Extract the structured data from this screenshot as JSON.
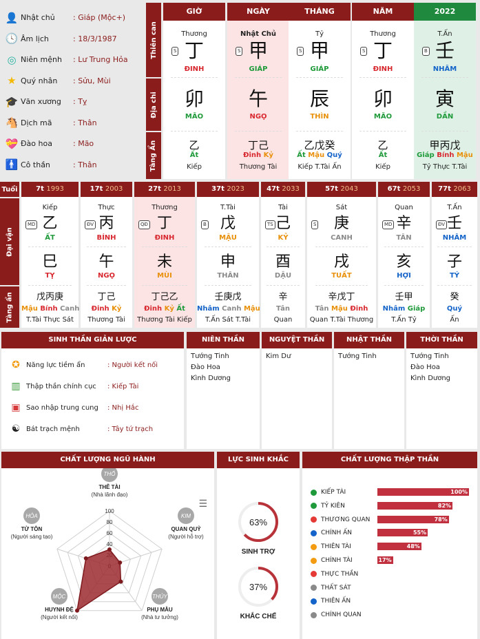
{
  "info": [
    {
      "icon": "user-icon",
      "label": "Nhật chủ",
      "value": ": Giáp (Mộc+)"
    },
    {
      "icon": "clock-icon",
      "label": "Âm lịch",
      "value": ": 18/3/1987"
    },
    {
      "icon": "ring-icon",
      "label": "Niên mệnh",
      "value": ": Lư Trung Hỏa"
    },
    {
      "icon": "star-icon",
      "label": "Quý nhân",
      "value": ": Sửu, Mùi"
    },
    {
      "icon": "graduation-cap-icon",
      "label": "Văn xương",
      "value": ": Tỵ"
    },
    {
      "icon": "horse-icon",
      "label": "Dịch mã",
      "value": ": Thân"
    },
    {
      "icon": "heart-flower-icon",
      "label": "Đào hoa",
      "value": ": Mão"
    },
    {
      "icon": "person-icon",
      "label": "Cô thần",
      "value": ": Thân"
    }
  ],
  "side_labels": {
    "thien_can": "Thiên can",
    "dia_chi": "Địa chi",
    "tang_an": "Tàng Ẩn",
    "tuoi": "Tuổi",
    "dai_van": "Đại vận",
    "tang_an2": "Tàng ẩn"
  },
  "pillars": [
    {
      "head": "GIỜ",
      "top": "Thương",
      "badge": "S",
      "can": "丁",
      "can_name": "ĐINH",
      "can_color": "c-red",
      "chi": "卯",
      "chi_name": "MÃO",
      "chi_color": "c-green",
      "hidden": "乙",
      "hidden_names": [
        {
          "t": "Ất",
          "c": "c-green"
        }
      ],
      "hidden_label": "Kiếp"
    },
    {
      "head": "NGÀY",
      "top": "Nhật Chủ",
      "badge": "S",
      "can": "甲",
      "can_name": "GIÁP",
      "can_color": "c-green",
      "chi": "午",
      "chi_name": "NGỌ",
      "chi_color": "c-red",
      "hidden": "丁己",
      "hidden_names": [
        {
          "t": "Đinh",
          "c": "c-red"
        },
        {
          "t": "Kỷ",
          "c": "c-orange"
        }
      ],
      "hidden_label": "Thương Tài"
    },
    {
      "head": "THÁNG",
      "top": "Tỷ",
      "badge": "S",
      "can": "甲",
      "can_name": "GIÁP",
      "can_color": "c-green",
      "chi": "辰",
      "chi_name": "THÌN",
      "chi_color": "c-orange",
      "hidden": "乙戊癸",
      "hidden_names": [
        {
          "t": "Ất",
          "c": "c-green"
        },
        {
          "t": "Mậu",
          "c": "c-orange"
        },
        {
          "t": "Quý",
          "c": "c-blue"
        }
      ],
      "hidden_label": "Kiếp T.Tài Ấn"
    },
    {
      "head": "NĂM",
      "top": "Thương",
      "badge": "S",
      "can": "丁",
      "can_name": "ĐINH",
      "can_color": "c-red",
      "chi": "卯",
      "chi_name": "MÃO",
      "chi_color": "c-green",
      "hidden": "乙",
      "hidden_names": [
        {
          "t": "Ất",
          "c": "c-green"
        }
      ],
      "hidden_label": "Kiếp"
    },
    {
      "head": "2022",
      "top": "T.Ấn",
      "badge": "B",
      "can": "壬",
      "can_name": "NHÂM",
      "can_color": "c-blue",
      "chi": "寅",
      "chi_name": "DẦN",
      "chi_color": "c-green",
      "hidden": "甲丙戊",
      "hidden_names": [
        {
          "t": "Giáp",
          "c": "c-green"
        },
        {
          "t": "Bính",
          "c": "c-red"
        },
        {
          "t": "Mậu",
          "c": "c-orange"
        }
      ],
      "hidden_label": "Tỷ Thực T.Tài"
    }
  ],
  "dai_van": [
    {
      "age": "7t",
      "year": "1993",
      "top": "Kiếp",
      "badge": "MD",
      "can": "乙",
      "can_name": "ẤT",
      "can_color": "c-green",
      "chi": "巳",
      "chi_name": "TỴ",
      "chi_color": "c-red",
      "hidden": "戊丙庚",
      "hidden_names": [
        {
          "t": "Mậu",
          "c": "c-orange"
        },
        {
          "t": "Bính",
          "c": "c-red"
        },
        {
          "t": "Canh",
          "c": "c-gray"
        }
      ],
      "hidden_label": "T.Tài Thực Sát"
    },
    {
      "age": "17t",
      "year": "2003",
      "top": "Thực",
      "badge": "ĐV",
      "can": "丙",
      "can_name": "BÍNH",
      "can_color": "c-red",
      "chi": "午",
      "chi_name": "NGỌ",
      "chi_color": "c-red",
      "hidden": "丁己",
      "hidden_names": [
        {
          "t": "Đinh",
          "c": "c-red"
        },
        {
          "t": "Kỷ",
          "c": "c-orange"
        }
      ],
      "hidden_label": "Thương Tài"
    },
    {
      "age": "27t",
      "year": "2013",
      "top": "Thương",
      "badge": "QĐ",
      "can": "丁",
      "can_name": "ĐINH",
      "can_color": "c-red",
      "chi": "未",
      "chi_name": "MÙI",
      "chi_color": "c-orange",
      "hidden": "丁己乙",
      "hidden_names": [
        {
          "t": "Đinh",
          "c": "c-red"
        },
        {
          "t": "Kỷ",
          "c": "c-orange"
        },
        {
          "t": "Ất",
          "c": "c-green"
        }
      ],
      "hidden_label": "Thương Tài Kiếp"
    },
    {
      "age": "37t",
      "year": "2023",
      "top": "T.Tài",
      "badge": "B",
      "can": "戊",
      "can_name": "MẬU",
      "can_color": "c-orange",
      "chi": "申",
      "chi_name": "THÂN",
      "chi_color": "c-gray",
      "hidden": "壬庚戊",
      "hidden_names": [
        {
          "t": "Nhâm",
          "c": "c-blue"
        },
        {
          "t": "Canh",
          "c": "c-gray"
        },
        {
          "t": "Mậu",
          "c": "c-orange"
        }
      ],
      "hidden_label": "T.Ấn Sát T.Tài"
    },
    {
      "age": "47t",
      "year": "2033",
      "top": "Tài",
      "badge": "TS",
      "can": "己",
      "can_name": "KỶ",
      "can_color": "c-orange",
      "chi": "酉",
      "chi_name": "DẬU",
      "chi_color": "c-gray",
      "hidden": "辛",
      "hidden_names": [
        {
          "t": "Tân",
          "c": "c-gray"
        }
      ],
      "hidden_label": "Quan"
    },
    {
      "age": "57t",
      "year": "2043",
      "top": "Sát",
      "badge": "S",
      "can": "庚",
      "can_name": "CANH",
      "can_color": "c-gray",
      "chi": "戌",
      "chi_name": "TUẤT",
      "chi_color": "c-orange",
      "hidden": "辛戊丁",
      "hidden_names": [
        {
          "t": "Tân",
          "c": "c-gray"
        },
        {
          "t": "Mậu",
          "c": "c-orange"
        },
        {
          "t": "Đinh",
          "c": "c-red"
        }
      ],
      "hidden_label": "Quan T.Tài Thương"
    },
    {
      "age": "67t",
      "year": "2053",
      "top": "Quan",
      "badge": "MD",
      "can": "辛",
      "can_name": "TÂN",
      "can_color": "c-gray",
      "chi": "亥",
      "chi_name": "HỢI",
      "chi_color": "c-blue",
      "hidden": "壬甲",
      "hidden_names": [
        {
          "t": "Nhâm",
          "c": "c-blue"
        },
        {
          "t": "Giáp",
          "c": "c-green"
        }
      ],
      "hidden_label": "T.Ấn Tỷ"
    },
    {
      "age": "77t",
      "year": "2063",
      "top": "T.Ấn",
      "badge": "ĐV",
      "can": "壬",
      "can_name": "NHÂM",
      "can_color": "c-blue",
      "chi": "子",
      "chi_name": "TÝ",
      "chi_color": "c-blue",
      "hidden": "癸",
      "hidden_names": [
        {
          "t": "Quý",
          "c": "c-blue"
        }
      ],
      "hidden_label": "Ấn"
    }
  ],
  "sinh_than": {
    "title": "SINH THẦN GIẢN LƯỢC",
    "rows": [
      {
        "icon": "star-badge-icon",
        "label": "Năng lực tiềm ẩn",
        "value": ": Người kết nối"
      },
      {
        "icon": "bar-chart-icon",
        "label": "Thập thần chính cục",
        "value": ": Kiếp Tài"
      },
      {
        "icon": "red-seal-icon",
        "label": "Sao nhập trung cung",
        "value": ": Nhị Hắc"
      },
      {
        "icon": "yin-yang-icon",
        "label": "Bát trạch mệnh",
        "value": ": Tây tứ trạch"
      }
    ]
  },
  "than_cols": [
    {
      "title": "NIÊN THẦN",
      "items": [
        "Tướng Tinh",
        "Đào Hoa",
        "Kình Dương"
      ]
    },
    {
      "title": "NGUYỆT THẦN",
      "items": [
        "Kim Dư"
      ]
    },
    {
      "title": "NHẬT THẦN",
      "items": [
        "Tướng Tinh"
      ]
    },
    {
      "title": "THỜI THẦN",
      "items": [
        "Tướng Tinh",
        "Đào Hoa",
        "Kình Dương"
      ]
    }
  ],
  "ngu_hanh": {
    "title": "CHẤT LƯỢNG NGŨ HÀNH",
    "menu_icon": "hamburger-menu-icon",
    "ticks": [
      "100",
      "80",
      "60",
      "40",
      "20",
      "0"
    ],
    "nodes": [
      {
        "circle": "THỔ",
        "label": "THÊ TÀI",
        "sub": "(Nhà lãnh đạo)"
      },
      {
        "circle": "KIM",
        "label": "QUAN QUỶ",
        "sub": "(Người hỗ trợ)"
      },
      {
        "circle": "THỦY",
        "label": "PHỤ MẪU",
        "sub": "(Nhà tư tưởng)"
      },
      {
        "circle": "MỘC",
        "label": "HUYNH ĐỆ",
        "sub": "(Người kết nối)"
      },
      {
        "circle": "HỎA",
        "label": "TỬ TÔN",
        "sub": "(Người sáng tạo)"
      }
    ]
  },
  "chart_data": [
    {
      "type": "radar",
      "title": "CHẤT LƯỢNG NGŨ HÀNH",
      "categories": [
        "THÊ TÀI",
        "QUAN QUỶ",
        "PHỤ MẪU",
        "HUYNH ĐỆ",
        "TỬ TÔN"
      ],
      "values": [
        30,
        20,
        35,
        100,
        45
      ],
      "ylim": [
        0,
        100
      ]
    },
    {
      "type": "bar",
      "title": "CHẤT LƯỢNG THẬP THẦN",
      "categories": [
        "KIẾP TÀI",
        "TỶ KIÊN",
        "THƯƠNG QUAN",
        "CHÍNH ẤN",
        "THIÊN TÀI",
        "CHÍNH TÀI",
        "THỰC THẦN",
        "THẤT SÁT",
        "THIÊN ẤN",
        "CHÍNH QUAN"
      ],
      "values": [
        100,
        82,
        78,
        55,
        48,
        17,
        0,
        0,
        0,
        0
      ],
      "labels": [
        "100%",
        "82%",
        "78%",
        "55%",
        "48%",
        "17%",
        "",
        "",
        "",
        ""
      ],
      "dot_colors": [
        "#1f9a3a",
        "#1f9a3a",
        "#e53935",
        "#1463c8",
        "#f39c12",
        "#f39c12",
        "#e53935",
        "#8a8a8a",
        "#1463c8",
        "#8a8a8a"
      ]
    }
  ],
  "luc_sinh": {
    "title": "LỰC SINH KHẮC",
    "items": [
      {
        "percent": 63,
        "text": "63%",
        "label": "SINH TRỢ"
      },
      {
        "percent": 37,
        "text": "37%",
        "label": "KHẮC CHẾ"
      }
    ]
  },
  "thap_than": {
    "title": "CHẤT LƯỢNG THẬP THẦN"
  }
}
